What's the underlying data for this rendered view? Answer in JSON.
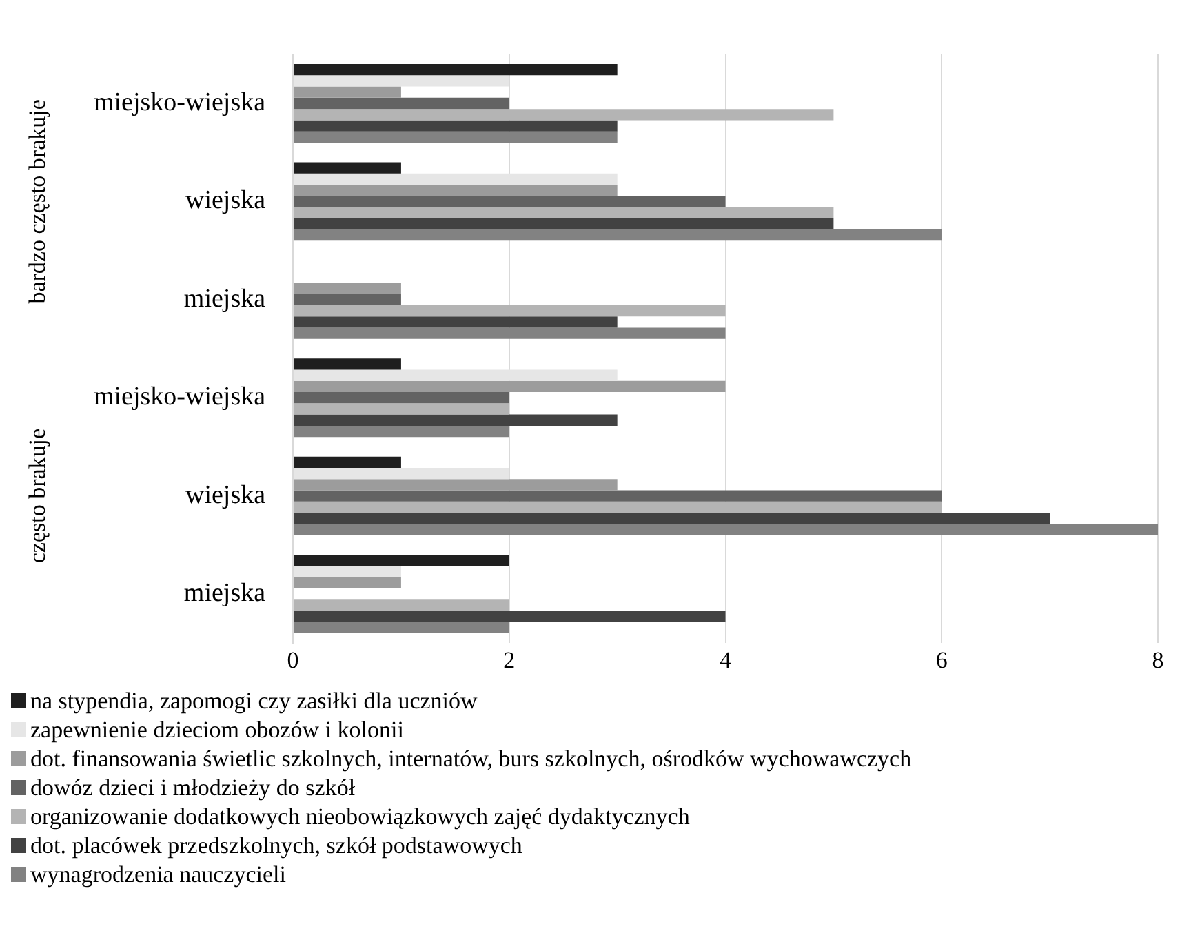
{
  "chart_data": {
    "type": "bar",
    "orientation": "horizontal",
    "categories": [
      "miejsko-wiejska",
      "wiejska",
      "miejska",
      "miejsko-wiejska",
      "wiejska",
      "miejska"
    ],
    "annotations": [
      "bardzo często brakuje",
      "często brakuje"
    ],
    "series": [
      {
        "name": "na stypendia, zapomogi czy zasiłki dla uczniów",
        "color": "#1f1f1f",
        "values": [
          3,
          1,
          0,
          1,
          1,
          2
        ]
      },
      {
        "name": "zapewnienie dzieciom obozów i kolonii",
        "color": "#e6e6e6",
        "values": [
          2,
          3,
          0,
          3,
          2,
          1
        ]
      },
      {
        "name": "dot. finansowania świetlic szkolnych, internatów, burs szkolnych, ośrodków wychowawczych",
        "color": "#9c9c9c",
        "values": [
          1,
          3,
          1,
          4,
          3,
          1
        ]
      },
      {
        "name": "dowóz dzieci i młodzieży do szkół",
        "color": "#636363",
        "values": [
          2,
          4,
          1,
          2,
          6,
          0
        ]
      },
      {
        "name": "organizowanie dodatkowych nieobowiązkowych zajęć dydaktycznych",
        "color": "#b4b4b4",
        "values": [
          5,
          5,
          4,
          2,
          6,
          2
        ]
      },
      {
        "name": "dot. placówek przedszkolnych, szkół podstawowych",
        "color": "#424242",
        "values": [
          3,
          5,
          3,
          3,
          7,
          4
        ]
      },
      {
        "name": "wynagrodzenia nauczycieli",
        "color": "#828282",
        "values": [
          3,
          6,
          4,
          2,
          8,
          2
        ]
      }
    ],
    "xlim": [
      0,
      8
    ],
    "xticks": [
      0,
      2,
      4,
      6,
      8
    ],
    "grid": "x",
    "legend": "bottom"
  }
}
